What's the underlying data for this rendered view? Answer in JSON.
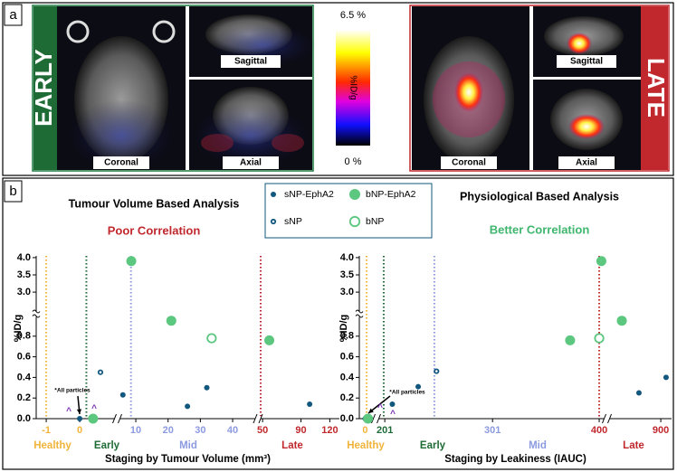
{
  "panel_a": {
    "label": "a",
    "early_label": "EARLY",
    "late_label": "LATE",
    "early_views": [
      "Coronal",
      "Sagittal",
      "Axial"
    ],
    "late_views": [
      "Coronal",
      "Sagittal",
      "Axial"
    ],
    "colorbar_max": "6.5 %",
    "colorbar_min": "0 %",
    "colorbar_title": "%ID/g"
  },
  "panel_b_label": "b",
  "chart_data": [
    {
      "type": "scatter",
      "title": "Tumour Volume Based Analysis",
      "subtitle": "Poor Correlation",
      "subtitle_color": "#c0282d",
      "y_label": "%ID/g",
      "x_label": "Staging by Tumour Volume (mm³)",
      "xlim": [
        -1.3,
        130
      ],
      "xbreaks": [
        [
          1.0,
          5.5
        ],
        [
          47,
          48
        ]
      ],
      "xticks": [
        -1,
        0,
        10,
        20,
        30,
        40,
        50,
        90,
        120
      ],
      "ylim": [
        0,
        4.05
      ],
      "ybreaks": [
        [
          1.0,
          2.4
        ]
      ],
      "yticks": [
        {
          "value": 0,
          "label": "0.0"
        },
        0.2,
        0.4,
        0.6,
        0.8,
        {
          "value": 3,
          "label": "3.0"
        },
        3.5,
        {
          "value": 4,
          "label": "4.0"
        }
      ],
      "stages": [
        {
          "name": "Healthy",
          "start": -1,
          "color": "#f0b43c"
        },
        {
          "name": "Early",
          "start": 0.2,
          "color": "#1e6b36"
        },
        {
          "name": "Mid",
          "start": 8.5,
          "color": "#8c9ae0"
        },
        {
          "name": "Late",
          "start": 48,
          "color": "#c0282d"
        }
      ],
      "series": [
        {
          "name": "sNP-EphA2",
          "color": "#12577e",
          "filled": true,
          "marker": "small",
          "x": [
            0,
            6,
            26,
            32,
            99
          ],
          "values": [
            0,
            0.23,
            0.12,
            0.3,
            0.14
          ]
        },
        {
          "name": "bNP-EphA2",
          "color": "#5cc77f",
          "filled": true,
          "marker": "large",
          "x": [
            0.4,
            8.6,
            21,
            57
          ],
          "values": [
            0,
            3.9,
            0.95,
            0.76
          ]
        },
        {
          "name": "sNP",
          "color": "#12577e",
          "filled": false,
          "marker": "small",
          "x": [
            0.62
          ],
          "values": [
            0.45
          ]
        },
        {
          "name": "bNP",
          "color": "#5cc77f",
          "filled": false,
          "marker": "large",
          "x": [
            33.5
          ],
          "values": [
            0.78
          ]
        }
      ],
      "annotations": [
        "*All particles",
        "^",
        "^"
      ]
    },
    {
      "type": "scatter",
      "title": "Physiological Based Analysis",
      "subtitle": "Better Correlation",
      "subtitle_color": "#3fb66e",
      "y_label": "%ID/g",
      "x_label": "Staging by Leakiness (IAUC)",
      "xlim": [
        -4,
        1000
      ],
      "xbreaks": [
        [
          6,
          195
        ],
        [
          405,
          420
        ]
      ],
      "xticks": [
        0,
        201,
        301,
        400,
        900
      ],
      "ylim": [
        0,
        4.05
      ],
      "ybreaks": [
        [
          1.0,
          2.4
        ]
      ],
      "yticks": [
        {
          "value": 0,
          "label": "0.0"
        },
        0.2,
        0.4,
        0.6,
        0.8,
        {
          "value": 3,
          "label": "3.0"
        },
        3.5,
        {
          "value": 4,
          "label": "4.0"
        }
      ],
      "stages": [
        {
          "name": "Healthy",
          "start": 1,
          "color": "#f0b43c"
        },
        {
          "name": "Early",
          "start": 200,
          "color": "#1e6b36"
        },
        {
          "name": "Mid",
          "start": 247,
          "color": "#8c9ae0"
        },
        {
          "name": "Late",
          "start": 400,
          "color": "#c0282d"
        }
      ],
      "series": [
        {
          "name": "sNP-EphA2",
          "color": "#12577e",
          "filled": true,
          "marker": "small",
          "x": [
            0,
            208,
            232,
            697,
            949
          ],
          "values": [
            0,
            0.14,
            0.31,
            0.25,
            0.4
          ]
        },
        {
          "name": "bNP-EphA2",
          "color": "#5cc77f",
          "filled": true,
          "marker": "large",
          "x": [
            2,
            402,
            373,
            538
          ],
          "values": [
            0,
            3.9,
            0.76,
            0.95
          ]
        },
        {
          "name": "sNP",
          "color": "#12577e",
          "filled": false,
          "marker": "small",
          "x": [
            249
          ],
          "values": [
            0.46
          ]
        },
        {
          "name": "bNP",
          "color": "#5cc77f",
          "filled": false,
          "marker": "large",
          "x": [
            400
          ],
          "values": [
            0.78
          ]
        }
      ],
      "annotations": [
        "*All particles",
        "^",
        "^"
      ]
    }
  ]
}
